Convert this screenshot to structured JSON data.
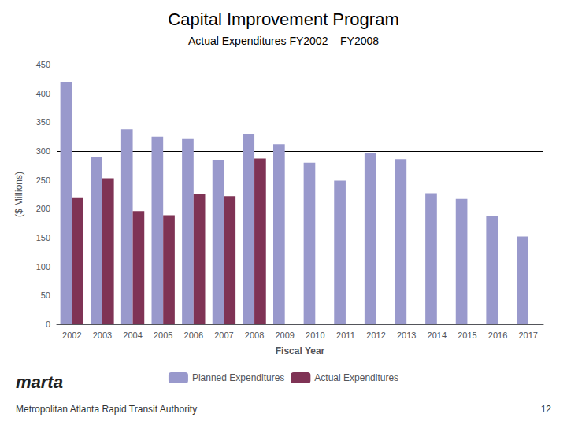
{
  "chart_data": {
    "type": "bar",
    "title": "Capital Improvement Program",
    "subtitle": "Actual Expenditures FY2002 – FY2008",
    "xlabel": "Fiscal Year",
    "ylabel": "($ Millions)",
    "categories": [
      "2002",
      "2003",
      "2004",
      "2005",
      "2006",
      "2007",
      "2008",
      "2009",
      "2010",
      "2011",
      "2012",
      "2013",
      "2014",
      "2015",
      "2016",
      "2017"
    ],
    "series": [
      {
        "name": "Planned Expenditures",
        "color": "#9999cc",
        "values": [
          420,
          290,
          338,
          325,
          322,
          285,
          330,
          312,
          280,
          249,
          296,
          286,
          227,
          217,
          187,
          152
        ]
      },
      {
        "name": "Actual Expenditures",
        "color": "#7f3355",
        "values": [
          220,
          253,
          196,
          189,
          226,
          222,
          287,
          null,
          null,
          null,
          null,
          null,
          null,
          null,
          null,
          null
        ]
      }
    ],
    "hlines": [
      {
        "value": 200,
        "color": "#000000"
      },
      {
        "value": 300,
        "color": "#000000"
      }
    ],
    "ylim": [
      0,
      450
    ],
    "yticks": [
      0,
      50,
      100,
      150,
      200,
      250,
      300,
      350,
      400,
      450
    ],
    "grid": false,
    "legend": "bottom",
    "annotations": [
      "marta",
      "Metropolitan Atlanta Rapid Transit Authority",
      "12"
    ]
  }
}
